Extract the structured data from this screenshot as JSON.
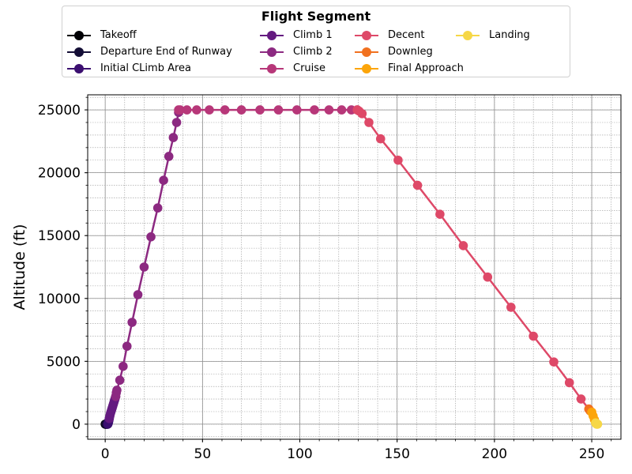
{
  "chart_data": {
    "type": "line",
    "title": "",
    "xlabel": "",
    "ylabel": "Altitude (ft)",
    "xlim": [
      -9,
      265
    ],
    "ylim": [
      -1200,
      26200
    ],
    "xticks": [
      0,
      50,
      100,
      150,
      200,
      250
    ],
    "yticks": [
      0,
      5000,
      10000,
      15000,
      20000,
      25000
    ],
    "grid": true,
    "legend": {
      "title": "Flight Segment",
      "placement": "top-center",
      "columns": 4
    },
    "series": [
      {
        "name": "Takeoff",
        "color": "#000004",
        "x": [
          0.0,
          0.2,
          0.4
        ],
        "y": [
          0,
          0,
          0
        ]
      },
      {
        "name": "Departure End of Runway",
        "color": "#140e36",
        "x": [
          0.4,
          0.7,
          1.0,
          1.3
        ],
        "y": [
          0,
          0,
          0,
          0
        ]
      },
      {
        "name": "Initial CLimb Area",
        "color": "#3b0f70",
        "x": [
          1.3,
          1.5,
          1.7,
          1.9,
          2.1
        ],
        "y": [
          0,
          50,
          150,
          300,
          450
        ]
      },
      {
        "name": "Climb 1",
        "color": "#641a80",
        "x": [
          2.1,
          2.4,
          2.7,
          3.0,
          3.3,
          3.6,
          3.9,
          4.2,
          4.5,
          4.8,
          5.1,
          5.4
        ],
        "y": [
          450,
          650,
          850,
          1000,
          1150,
          1300,
          1450,
          1600,
          1750,
          1900,
          2050,
          2200
        ]
      },
      {
        "name": "Climb 2",
        "color": "#8c2981",
        "x": [
          5.4,
          5.7,
          6.0,
          7.5,
          9.2,
          11.2,
          13.8,
          16.8,
          20.0,
          23.5,
          27.0,
          30.0,
          32.7,
          35.0,
          36.7,
          37.7
        ],
        "y": [
          2200,
          2500,
          2700,
          3500,
          4600,
          6200,
          8100,
          10300,
          12500,
          14900,
          17200,
          19400,
          21300,
          22800,
          24000,
          24800
        ]
      },
      {
        "name": "Cruise",
        "color": "#b73779",
        "x": [
          37.7,
          38.5,
          42.0,
          47.0,
          53.5,
          61.5,
          70.0,
          79.5,
          89.0,
          98.5,
          107.5,
          115.0,
          121.5,
          126.5,
          129.5
        ],
        "y": [
          25000,
          25000,
          25000,
          25000,
          25000,
          25000,
          25000,
          25000,
          25000,
          25000,
          25000,
          25000,
          25000,
          25000,
          25000
        ]
      },
      {
        "name": "Decent",
        "color": "#de4968",
        "x": [
          129.5,
          130.5,
          132.0,
          135.5,
          141.5,
          150.5,
          160.5,
          172.0,
          184.0,
          196.5,
          208.5,
          220.0,
          230.5,
          238.5,
          244.5,
          248.5
        ],
        "y": [
          25000,
          24900,
          24700,
          24000,
          22700,
          21000,
          19000,
          16700,
          14200,
          11700,
          9300,
          7000,
          4950,
          3300,
          2000,
          1200
        ]
      },
      {
        "name": "Downleg",
        "color": "#f1711f",
        "x": [
          248.5,
          249.2,
          250.0
        ],
        "y": [
          1200,
          1050,
          950
        ]
      },
      {
        "name": "Final Approach",
        "color": "#fca50a",
        "x": [
          250.0,
          250.7,
          251.4,
          252.0
        ],
        "y": [
          950,
          650,
          350,
          100
        ]
      },
      {
        "name": "Landing",
        "color": "#f6d746",
        "x": [
          252.0,
          252.5,
          253.0
        ],
        "y": [
          100,
          0,
          0
        ]
      }
    ]
  }
}
